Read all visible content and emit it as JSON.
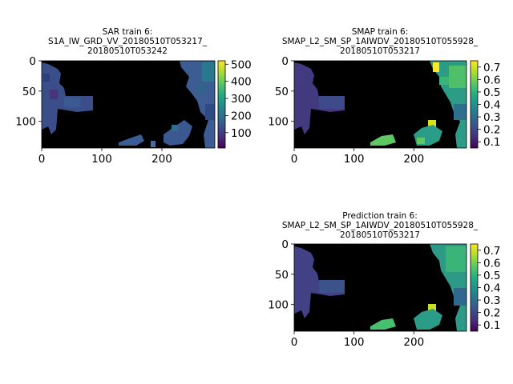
{
  "chart_data": [
    {
      "type": "heatmap",
      "panel": "sar",
      "title": [
        "SAR train 6:",
        "S1A_IW_GRD_VV_20180510T053217_",
        "20180510T053242"
      ],
      "x_ticks": [
        "0",
        "100",
        "200"
      ],
      "y_ticks": [
        "0",
        "50",
        "100"
      ],
      "xlim": [
        0,
        288
      ],
      "ylim": [
        0,
        144
      ],
      "colorbar": {
        "ticks": [
          "100",
          "200",
          "300",
          "400",
          "500"
        ],
        "range": [
          10,
          520
        ],
        "colormap": "viridis"
      },
      "background": "#000000"
    },
    {
      "type": "heatmap",
      "panel": "smap",
      "title": [
        "SMAP train 6:",
        "SMAP_L2_SM_SP_1AIWDV_20180510T055928_",
        "20180510T053217"
      ],
      "x_ticks": [
        "0",
        "100",
        "200"
      ],
      "y_ticks": [
        "0",
        "50",
        "100"
      ],
      "xlim": [
        0,
        288
      ],
      "ylim": [
        0,
        144
      ],
      "colorbar": {
        "ticks": [
          "0.1",
          "0.2",
          "0.3",
          "0.4",
          "0.5",
          "0.6",
          "0.7"
        ],
        "range": [
          0.05,
          0.75
        ],
        "colormap": "viridis"
      },
      "background": "#000000"
    },
    {
      "type": "heatmap",
      "panel": "prediction",
      "title": [
        "Prediction train 6:",
        "SMAP_L2_SM_SP_1AIWDV_20180510T055928_",
        "20180510T053217"
      ],
      "x_ticks": [
        "0",
        "100",
        "200"
      ],
      "y_ticks": [
        "0",
        "50",
        "100"
      ],
      "xlim": [
        0,
        288
      ],
      "ylim": [
        0,
        144
      ],
      "colorbar": {
        "ticks": [
          "0.1",
          "0.2",
          "0.3",
          "0.4",
          "0.5",
          "0.6",
          "0.7"
        ],
        "range": [
          0.05,
          0.75
        ],
        "colormap": "viridis"
      },
      "background": "#000000"
    }
  ]
}
